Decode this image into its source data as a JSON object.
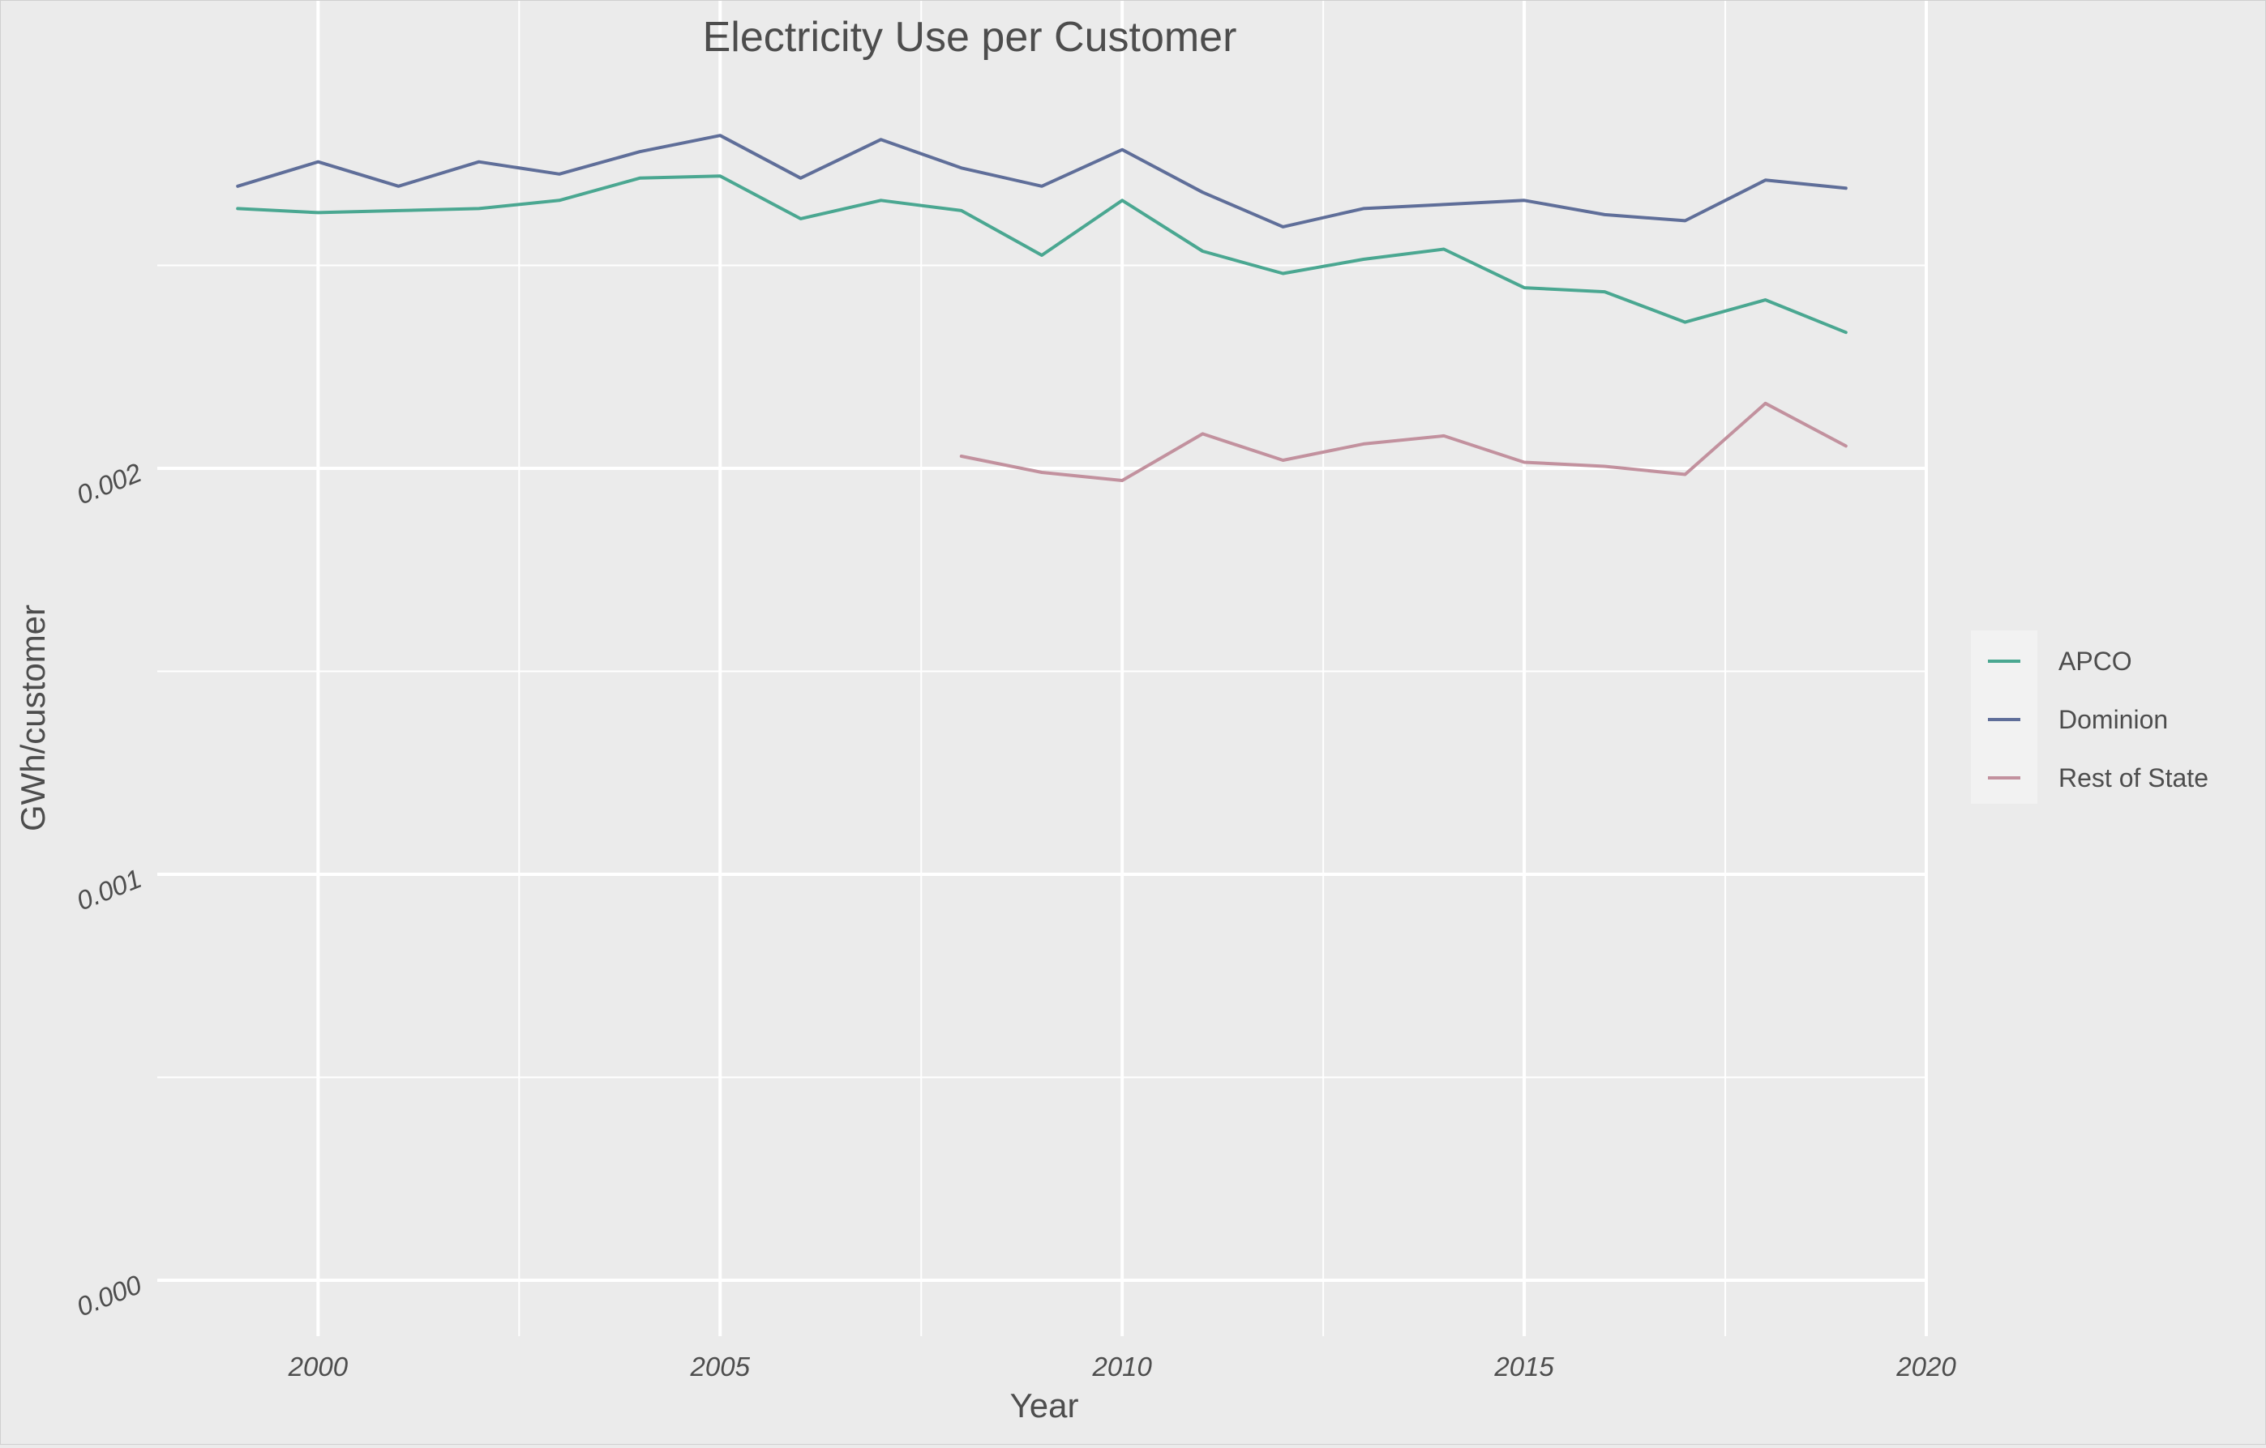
{
  "chart_data": {
    "type": "line",
    "title": "Electricity Use per Customer",
    "xlabel": "Year",
    "ylabel": "GWh/customer",
    "xlim": [
      1998,
      2020
    ],
    "ylim": [
      0,
      0.0028
    ],
    "x_ticks": [
      "2000",
      "2005",
      "2010",
      "2015",
      "2020"
    ],
    "x_tick_values": [
      2000,
      2005,
      2010,
      2015,
      2020
    ],
    "x_minor_ticks": [
      2002.5,
      2007.5,
      2012.5,
      2017.5
    ],
    "y_ticks": [
      "0.000",
      "0.001",
      "0.002"
    ],
    "y_tick_values": [
      0,
      0.001,
      0.002
    ],
    "y_minor_ticks": [
      0.0005,
      0.0015,
      0.0025
    ],
    "grid": true,
    "legend_position": "right",
    "series": [
      {
        "name": "APCO",
        "color": "#4aa791",
        "x": [
          1999,
          2000,
          2001,
          2002,
          2003,
          2004,
          2005,
          2006,
          2007,
          2008,
          2009,
          2010,
          2011,
          2012,
          2013,
          2014,
          2015,
          2016,
          2017,
          2018,
          2019
        ],
        "y": [
          0.00264,
          0.00263,
          0.002635,
          0.00264,
          0.00266,
          0.002715,
          0.00272,
          0.002615,
          0.00266,
          0.002635,
          0.002525,
          0.00266,
          0.002535,
          0.00248,
          0.002515,
          0.00254,
          0.002445,
          0.002435,
          0.00236,
          0.002415,
          0.002335
        ]
      },
      {
        "name": "Dominion",
        "color": "#5f6e99",
        "x": [
          1999,
          2000,
          2001,
          2002,
          2003,
          2004,
          2005,
          2006,
          2007,
          2008,
          2009,
          2010,
          2011,
          2012,
          2013,
          2014,
          2015,
          2016,
          2017,
          2018,
          2019
        ],
        "y": [
          0.002695,
          0.002755,
          0.002695,
          0.002755,
          0.002725,
          0.00278,
          0.00282,
          0.002715,
          0.00281,
          0.00274,
          0.002695,
          0.002785,
          0.00268,
          0.002595,
          0.00264,
          0.00265,
          0.00266,
          0.002625,
          0.00261,
          0.00271,
          0.00269
        ]
      },
      {
        "name": "Rest of State",
        "color": "#c2919e",
        "x": [
          2008,
          2009,
          2010,
          2011,
          2012,
          2013,
          2014,
          2015,
          2016,
          2017,
          2018,
          2019
        ],
        "y": [
          0.00203,
          0.00199,
          0.00197,
          0.002085,
          0.00202,
          0.00206,
          0.00208,
          0.002015,
          0.002005,
          0.001985,
          0.00216,
          0.002055
        ]
      }
    ]
  }
}
